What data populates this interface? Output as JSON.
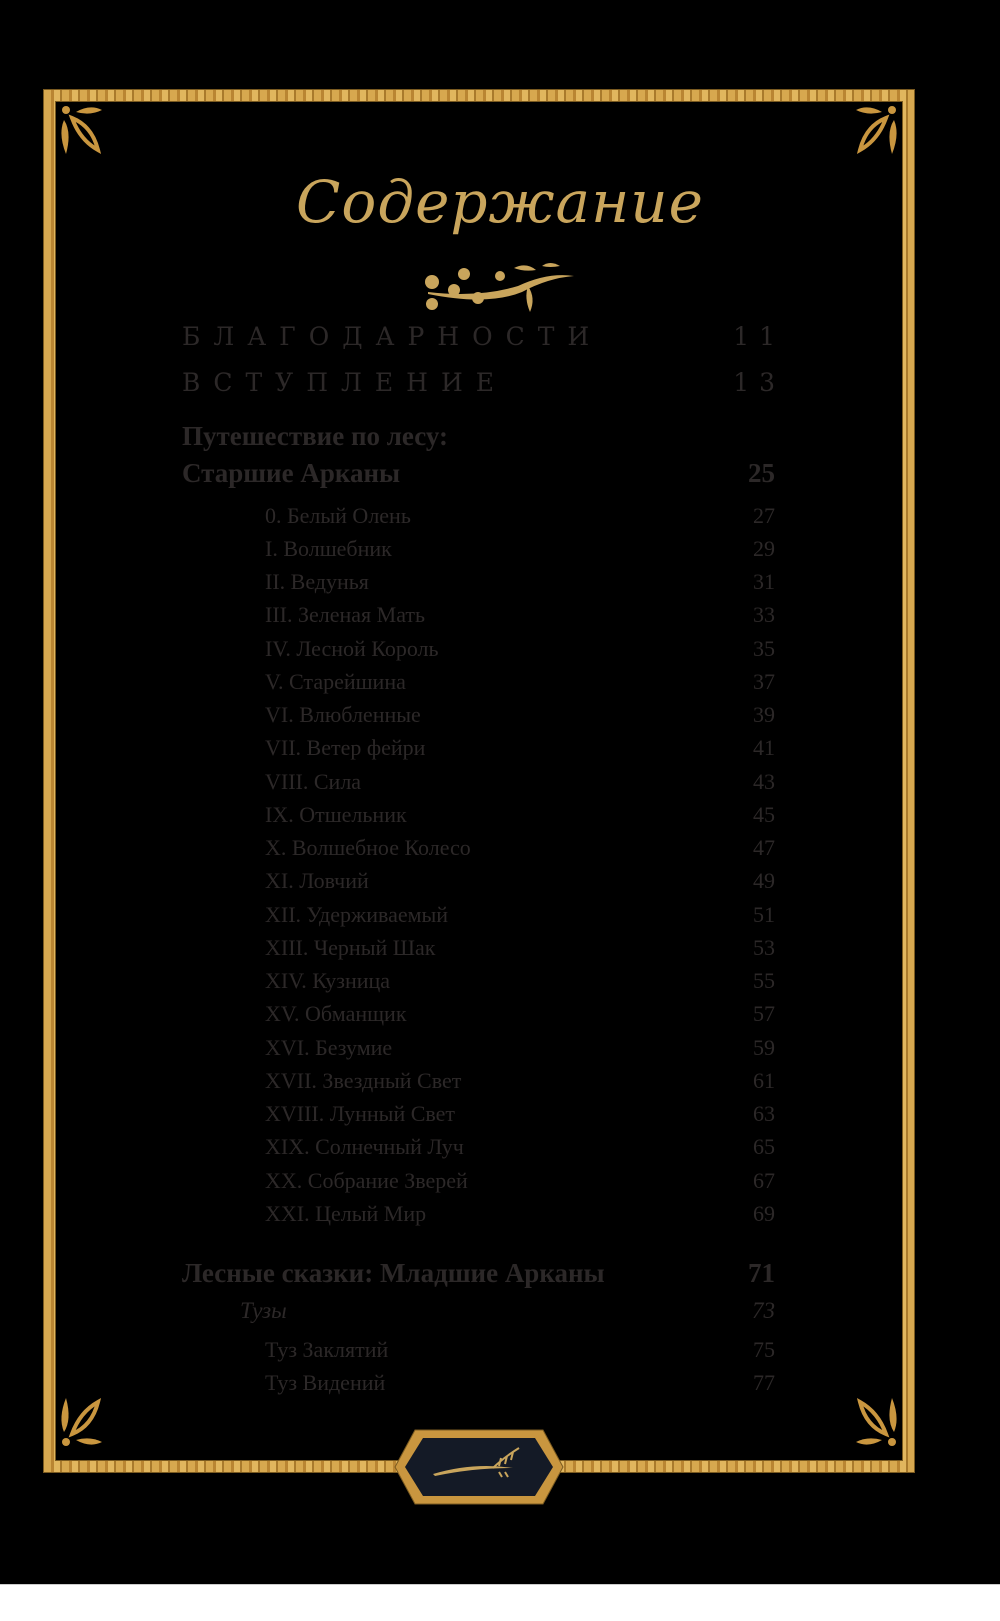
{
  "title": "Содержание",
  "colors": {
    "gold": "#c9963f",
    "text": "#2c2828",
    "background": "#000000",
    "medallion": "#141a26"
  },
  "toc": [
    {
      "label": "БЛАГОДАРНОСТИ",
      "page": "11",
      "style": "caps"
    },
    {
      "label": "ВСТУПЛЕНИЕ",
      "page": "13",
      "style": "caps"
    },
    {
      "label": "Путешествие по лесу:",
      "page": "",
      "style": "bold"
    },
    {
      "label": "Старшие Арканы",
      "page": "25",
      "style": "bold"
    },
    {
      "label": "0. Белый Олень",
      "page": "27",
      "style": "sub"
    },
    {
      "label": "I. Волшебник",
      "page": "29",
      "style": "sub"
    },
    {
      "label": "II. Ведунья",
      "page": "31",
      "style": "sub"
    },
    {
      "label": "III. Зеленая Мать",
      "page": "33",
      "style": "sub"
    },
    {
      "label": "IV. Лесной Король",
      "page": "35",
      "style": "sub"
    },
    {
      "label": "V. Старейшина",
      "page": "37",
      "style": "sub"
    },
    {
      "label": "VI. Влюбленные",
      "page": "39",
      "style": "sub"
    },
    {
      "label": "VII. Ветер фейри",
      "page": "41",
      "style": "sub"
    },
    {
      "label": "VIII. Сила",
      "page": "43",
      "style": "sub"
    },
    {
      "label": "IX. Отшельник",
      "page": "45",
      "style": "sub"
    },
    {
      "label": "X. Волшебное Колесо",
      "page": "47",
      "style": "sub"
    },
    {
      "label": "XI. Ловчий",
      "page": "49",
      "style": "sub"
    },
    {
      "label": "XII. Удерживаемый",
      "page": "51",
      "style": "sub"
    },
    {
      "label": "XIII. Черный Шак",
      "page": "53",
      "style": "sub"
    },
    {
      "label": "XIV. Кузница",
      "page": "55",
      "style": "sub"
    },
    {
      "label": "XV. Обманщик",
      "page": "57",
      "style": "sub"
    },
    {
      "label": "XVI. Безумие",
      "page": "59",
      "style": "sub"
    },
    {
      "label": "XVII. Звездный Свет",
      "page": "61",
      "style": "sub"
    },
    {
      "label": "XVIII. Лунный Свет",
      "page": "63",
      "style": "sub"
    },
    {
      "label": "XIX. Солнечный Луч",
      "page": "65",
      "style": "sub"
    },
    {
      "label": "XX. Собрание Зверей",
      "page": "67",
      "style": "sub"
    },
    {
      "label": "XXI. Целый Мир",
      "page": "69",
      "style": "sub"
    },
    {
      "label": "Лесные сказки: Младшие Арканы",
      "page": "71",
      "style": "bold"
    },
    {
      "label": "Тузы",
      "page": "73",
      "style": "ital"
    },
    {
      "label": "Туз Заклятий",
      "page": "75",
      "style": "sub"
    },
    {
      "label": "Туз Видений",
      "page": "77",
      "style": "sub"
    }
  ]
}
